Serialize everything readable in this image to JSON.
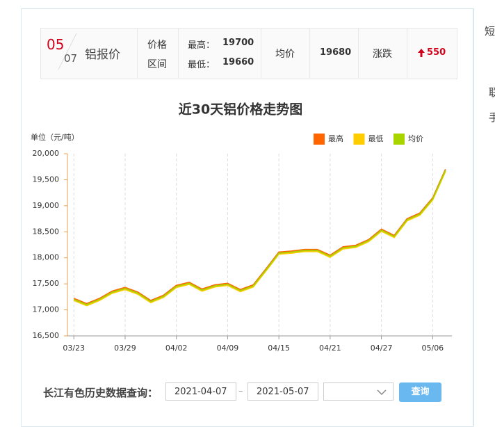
{
  "header": {
    "month": "05",
    "day": "07",
    "name": "铝报价",
    "range_label": [
      "价格",
      "区间"
    ],
    "high_label": "最高：",
    "high": 19700,
    "low_label": "最低：",
    "low": 19660,
    "avg_label": "均价",
    "avg": 19680,
    "change_label": "涨跌",
    "change": 550
  },
  "chart_data": {
    "type": "line",
    "title": "近30天铝价格走势图",
    "y_unit": "单位（元/吨）",
    "categories": [
      "03/23",
      null,
      null,
      null,
      "03/29",
      null,
      null,
      null,
      "04/02",
      null,
      null,
      null,
      "04/09",
      null,
      null,
      null,
      "04/15",
      null,
      null,
      null,
      "04/21",
      null,
      null,
      null,
      "04/27",
      null,
      null,
      null,
      "05/06",
      null
    ],
    "series": [
      {
        "name": "最高",
        "color": "#ff6600",
        "values": [
          17220,
          17120,
          17220,
          17360,
          17430,
          17340,
          17180,
          17280,
          17470,
          17530,
          17400,
          17480,
          17510,
          17390,
          17480,
          17790,
          18110,
          18130,
          18160,
          18160,
          18050,
          18210,
          18240,
          18350,
          18550,
          18430,
          18750,
          18860,
          19150,
          19700
        ]
      },
      {
        "name": "最低",
        "color": "#ffcc00",
        "values": [
          17180,
          17080,
          17180,
          17320,
          17390,
          17300,
          17140,
          17240,
          17430,
          17490,
          17360,
          17440,
          17470,
          17350,
          17440,
          17750,
          18070,
          18090,
          18120,
          18120,
          18010,
          18170,
          18200,
          18310,
          18510,
          18390,
          18710,
          18820,
          19110,
          19660
        ]
      },
      {
        "name": "均价",
        "color": "#a8d400",
        "values": [
          17200,
          17100,
          17200,
          17340,
          17410,
          17320,
          17160,
          17260,
          17450,
          17510,
          17380,
          17460,
          17490,
          17370,
          17460,
          17770,
          18090,
          18110,
          18140,
          18140,
          18030,
          18190,
          18220,
          18330,
          18530,
          18410,
          18730,
          18840,
          19130,
          19680
        ]
      }
    ],
    "ylim": [
      16500,
      20000
    ],
    "yticks": [
      {
        "value": 16500,
        "label": "16,500"
      },
      {
        "value": 17000,
        "label": "17,000"
      },
      {
        "value": 17500,
        "label": "17,500"
      },
      {
        "value": 18000,
        "label": "18,000"
      },
      {
        "value": 18500,
        "label": "18,500"
      },
      {
        "value": 19000,
        "label": "19,000"
      },
      {
        "value": 19500,
        "label": "19,500"
      },
      {
        "value": 20000,
        "label": "20,000"
      }
    ],
    "grid": true
  },
  "query": {
    "label": "长江有色历史数据查询：",
    "start": "2021-04-07",
    "separator": "–",
    "end": "2021-05-07",
    "button": "查询"
  },
  "side": [
    "短",
    "联",
    "手"
  ]
}
